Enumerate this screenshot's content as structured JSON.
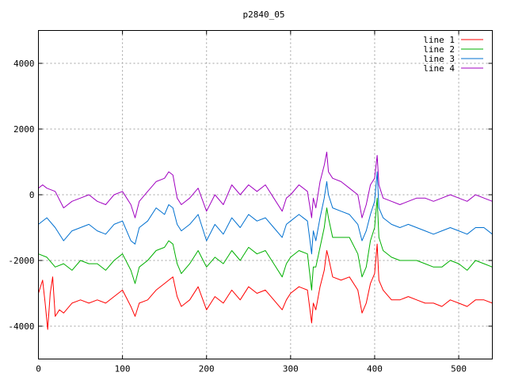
{
  "chart_data": {
    "type": "line",
    "title": "p2840_05",
    "xlabel": "",
    "ylabel": "",
    "xlim": [
      0,
      540
    ],
    "ylim": [
      -5000,
      5000
    ],
    "x_ticks": [
      0,
      100,
      200,
      300,
      400,
      500
    ],
    "y_ticks": [
      -4000,
      -2000,
      0,
      2000,
      4000
    ],
    "grid": true,
    "legend_position": "top-right",
    "series": [
      {
        "name": "line 1",
        "color": "#ff0000",
        "x": [
          0,
          5,
          8,
          11,
          14,
          17,
          20,
          25,
          30,
          40,
          50,
          60,
          70,
          80,
          90,
          100,
          110,
          115,
          120,
          130,
          140,
          150,
          155,
          160,
          165,
          170,
          180,
          190,
          200,
          210,
          220,
          230,
          240,
          250,
          260,
          270,
          280,
          290,
          295,
          300,
          310,
          320,
          325,
          327,
          330,
          335,
          340,
          343,
          345,
          350,
          360,
          370,
          380,
          385,
          390,
          395,
          400,
          403,
          405,
          410,
          420,
          430,
          440,
          450,
          460,
          470,
          480,
          490,
          500,
          510,
          520,
          530,
          540
        ],
        "y": [
          -3000,
          -2600,
          -3300,
          -4100,
          -3000,
          -2500,
          -3700,
          -3500,
          -3600,
          -3300,
          -3200,
          -3300,
          -3200,
          -3300,
          -3100,
          -2900,
          -3400,
          -3700,
          -3300,
          -3200,
          -2900,
          -2700,
          -2600,
          -2500,
          -3100,
          -3400,
          -3200,
          -2800,
          -3500,
          -3100,
          -3300,
          -2900,
          -3200,
          -2800,
          -3000,
          -2900,
          -3200,
          -3500,
          -3200,
          -3000,
          -2800,
          -2900,
          -3900,
          -3300,
          -3500,
          -2800,
          -2300,
          -1700,
          -1900,
          -2500,
          -2600,
          -2500,
          -2900,
          -3600,
          -3300,
          -2700,
          -2400,
          -1500,
          -2600,
          -2900,
          -3200,
          -3200,
          -3100,
          -3200,
          -3300,
          -3300,
          -3400,
          -3200,
          -3300,
          -3400,
          -3200,
          -3200,
          -3300
        ]
      },
      {
        "name": "line 2",
        "color": "#00b000",
        "x": [
          0,
          10,
          20,
          30,
          40,
          50,
          60,
          70,
          80,
          90,
          100,
          110,
          115,
          120,
          130,
          140,
          150,
          155,
          160,
          165,
          170,
          180,
          190,
          200,
          210,
          220,
          230,
          240,
          250,
          260,
          270,
          280,
          290,
          295,
          300,
          310,
          320,
          325,
          327,
          330,
          335,
          340,
          343,
          345,
          350,
          360,
          370,
          380,
          385,
          390,
          395,
          400,
          403,
          405,
          410,
          420,
          430,
          440,
          450,
          460,
          470,
          480,
          490,
          500,
          510,
          520,
          530,
          540
        ],
        "y": [
          -1800,
          -1900,
          -2200,
          -2100,
          -2300,
          -2000,
          -2100,
          -2100,
          -2300,
          -2000,
          -1800,
          -2300,
          -2700,
          -2200,
          -2000,
          -1700,
          -1600,
          -1400,
          -1500,
          -2100,
          -2400,
          -2100,
          -1700,
          -2200,
          -1900,
          -2100,
          -1700,
          -2000,
          -1600,
          -1800,
          -1700,
          -2100,
          -2500,
          -2100,
          -1900,
          -1700,
          -1800,
          -2900,
          -2200,
          -2200,
          -1600,
          -1000,
          -400,
          -700,
          -1300,
          -1300,
          -1300,
          -1800,
          -2500,
          -2200,
          -1400,
          -1000,
          -100,
          -1300,
          -1700,
          -1900,
          -2000,
          -2000,
          -2000,
          -2100,
          -2200,
          -2200,
          -2000,
          -2100,
          -2300,
          -2000,
          -2100,
          -2200
        ]
      },
      {
        "name": "line 3",
        "color": "#0070d0",
        "x": [
          0,
          10,
          20,
          30,
          40,
          50,
          60,
          70,
          80,
          90,
          100,
          110,
          115,
          120,
          130,
          140,
          150,
          155,
          160,
          165,
          170,
          180,
          190,
          200,
          210,
          220,
          230,
          240,
          250,
          260,
          270,
          280,
          290,
          295,
          300,
          310,
          320,
          325,
          327,
          330,
          335,
          340,
          343,
          345,
          350,
          360,
          370,
          380,
          385,
          390,
          395,
          400,
          403,
          405,
          410,
          420,
          430,
          440,
          450,
          460,
          470,
          480,
          490,
          500,
          510,
          520,
          530,
          540
        ],
        "y": [
          -900,
          -700,
          -1000,
          -1400,
          -1100,
          -1000,
          -900,
          -1100,
          -1200,
          -900,
          -800,
          -1400,
          -1500,
          -1000,
          -800,
          -400,
          -600,
          -300,
          -400,
          -900,
          -1100,
          -900,
          -600,
          -1400,
          -900,
          -1200,
          -700,
          -1000,
          -600,
          -800,
          -700,
          -1000,
          -1300,
          -900,
          -800,
          -600,
          -800,
          -1800,
          -1100,
          -1400,
          -700,
          -100,
          400,
          0,
          -400,
          -500,
          -600,
          -900,
          -1400,
          -1100,
          -600,
          -200,
          700,
          -400,
          -700,
          -900,
          -1000,
          -900,
          -1000,
          -1100,
          -1200,
          -1100,
          -1000,
          -1100,
          -1200,
          -1000,
          -1000,
          -1200
        ]
      },
      {
        "name": "line 4",
        "color": "#a000c0",
        "x": [
          0,
          5,
          10,
          20,
          30,
          40,
          50,
          60,
          70,
          80,
          90,
          100,
          110,
          115,
          120,
          130,
          140,
          150,
          155,
          160,
          165,
          170,
          180,
          190,
          200,
          210,
          220,
          230,
          240,
          250,
          260,
          270,
          280,
          290,
          295,
          300,
          310,
          320,
          325,
          327,
          330,
          335,
          340,
          343,
          345,
          350,
          360,
          370,
          380,
          385,
          390,
          395,
          400,
          403,
          405,
          410,
          420,
          430,
          440,
          450,
          460,
          470,
          480,
          490,
          500,
          510,
          520,
          530,
          540
        ],
        "y": [
          200,
          300,
          200,
          100,
          -400,
          -200,
          -100,
          0,
          -200,
          -300,
          0,
          100,
          -300,
          -700,
          -200,
          100,
          400,
          500,
          700,
          600,
          -100,
          -300,
          -100,
          200,
          -500,
          0,
          -300,
          300,
          0,
          300,
          100,
          300,
          -100,
          -500,
          -100,
          0,
          300,
          100,
          -700,
          -100,
          -400,
          400,
          900,
          1300,
          700,
          500,
          400,
          200,
          0,
          -700,
          -300,
          300,
          500,
          1200,
          300,
          -100,
          -200,
          -300,
          -200,
          -100,
          -100,
          -200,
          -100,
          0,
          -100,
          -200,
          0,
          -100,
          -200
        ]
      }
    ]
  }
}
